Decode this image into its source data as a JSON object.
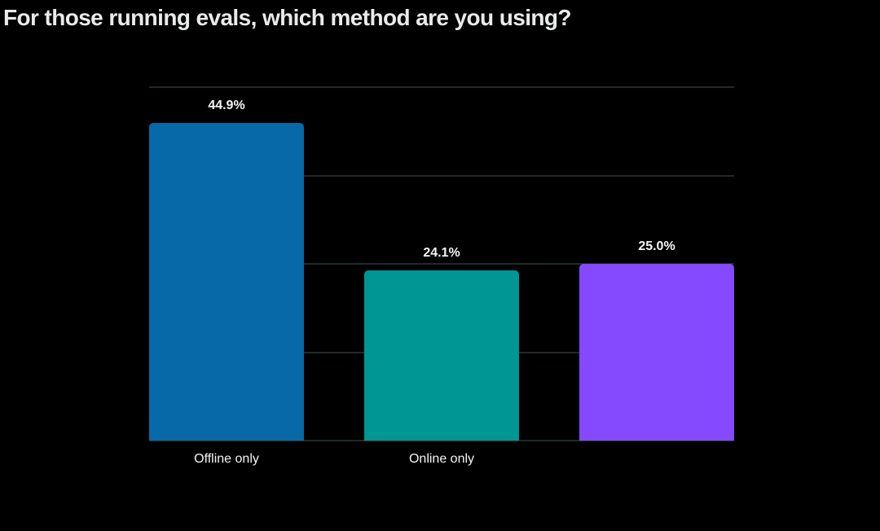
{
  "page": {
    "background_color": "#000000"
  },
  "header": {
    "title": "For those running evals, which method are you using?",
    "title_color": "#e9ebea"
  },
  "chart_data": {
    "type": "bar",
    "title": "For those running evals, which method are you using?",
    "categories": [
      "Offline only",
      "Online only",
      ""
    ],
    "values": [
      44.9,
      24.1,
      25.0
    ],
    "value_labels": [
      "44.9%",
      "24.1%",
      "25.0%"
    ],
    "bar_colors": [
      "#0769a8",
      "#009693",
      "#8549fe"
    ],
    "xlabel": "",
    "ylabel": "",
    "ylim": [
      0,
      50
    ],
    "gridline_step": 12.5,
    "grid": true,
    "gridline_color": "#1f2b29",
    "legend": false,
    "value_label_color": "#f5f5f5",
    "category_label_color": "#f7f7f7"
  }
}
